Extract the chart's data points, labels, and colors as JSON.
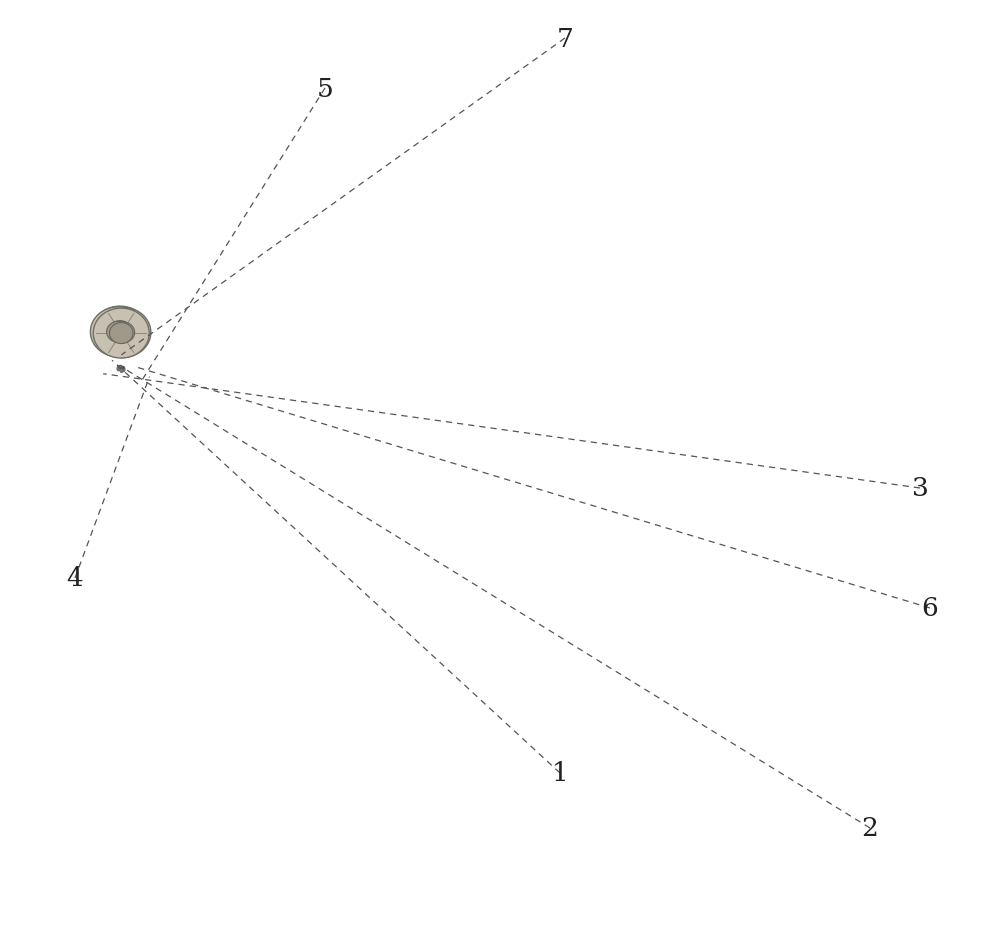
{
  "bg_color": "#ffffff",
  "lc": "#606060",
  "lc_dark": "#404040",
  "fc_top": "#f7f7f7",
  "fc_front": "#eeeeee",
  "fc_side": "#e4e4e4",
  "fc_post_front": "#e8e8e8",
  "fc_post_side": "#d8d8d8",
  "fc_bracket": "#e2e2e2",
  "fc_bracket_top": "#ececec",
  "fc_wheel": "#c0b8a8",
  "fc_wheel_hub": "#a09880",
  "fc_handle": "#484848",
  "hole_color": "#909090",
  "lw_main": 1.3,
  "lw_inner": 0.9,
  "label_fontsize": 19,
  "label_color": "#222222",
  "leader_color": "#555555"
}
